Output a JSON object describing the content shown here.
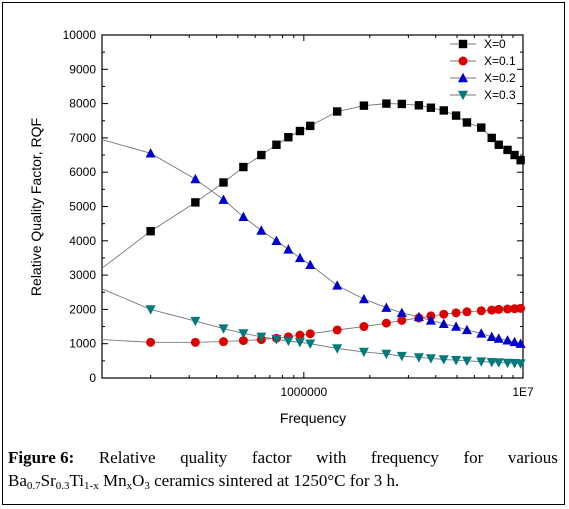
{
  "chart_data": {
    "type": "scatter",
    "title": "",
    "xlabel": "Frequency",
    "ylabel": "Relative Quality Factor, RQF",
    "xscale": "log",
    "xlim": [
      120000,
      10000000
    ],
    "ylim": [
      0,
      10000
    ],
    "y_ticks": [
      0,
      1000,
      2000,
      3000,
      4000,
      5000,
      6000,
      7000,
      8000,
      9000,
      10000
    ],
    "x_tick_values": [
      1000000,
      10000000
    ],
    "x_tick_labels": [
      "1000000",
      "1E7"
    ],
    "legend_position": "top-right",
    "grid": false,
    "series": [
      {
        "name": "X=0",
        "color": "#000000",
        "marker": "square",
        "x": [
          200000,
          320000,
          430000,
          530000,
          640000,
          750000,
          850000,
          960000,
          1070000,
          1420000,
          1880000,
          2380000,
          2800000,
          3350000,
          3800000,
          4350000,
          4950000,
          5550000,
          6450000,
          7200000,
          7750000,
          8500000,
          9150000,
          9750000
        ],
        "y": [
          4280,
          5120,
          5700,
          6150,
          6500,
          6800,
          7020,
          7200,
          7350,
          7770,
          7940,
          8000,
          7990,
          7950,
          7880,
          7800,
          7650,
          7450,
          7300,
          7000,
          6800,
          6650,
          6500,
          6350
        ]
      },
      {
        "name": "X=0.1",
        "color": "#dd0000",
        "marker": "circle",
        "x": [
          200000,
          320000,
          430000,
          530000,
          640000,
          750000,
          850000,
          960000,
          1070000,
          1420000,
          1880000,
          2380000,
          2800000,
          3350000,
          3800000,
          4350000,
          4950000,
          5550000,
          6450000,
          7200000,
          7750000,
          8500000,
          9150000,
          9750000
        ],
        "y": [
          1040,
          1040,
          1060,
          1090,
          1120,
          1160,
          1200,
          1250,
          1290,
          1400,
          1500,
          1600,
          1680,
          1750,
          1810,
          1860,
          1900,
          1930,
          1960,
          1980,
          2000,
          2010,
          2020,
          2030
        ]
      },
      {
        "name": "X=0.2",
        "color": "#0000cc",
        "marker": "triangle-up",
        "x": [
          200000,
          320000,
          430000,
          530000,
          640000,
          750000,
          850000,
          960000,
          1070000,
          1420000,
          1880000,
          2380000,
          2800000,
          3350000,
          3800000,
          4350000,
          4950000,
          5550000,
          6450000,
          7200000,
          7750000,
          8500000,
          9150000,
          9750000
        ],
        "y": [
          6550,
          5800,
          5200,
          4700,
          4300,
          4000,
          3750,
          3500,
          3300,
          2700,
          2300,
          2050,
          1900,
          1780,
          1680,
          1580,
          1500,
          1400,
          1300,
          1200,
          1150,
          1100,
          1050,
          1000
        ]
      },
      {
        "name": "X=0.3",
        "color": "#007a7a",
        "marker": "triangle-down",
        "x": [
          200000,
          320000,
          430000,
          530000,
          640000,
          750000,
          850000,
          960000,
          1070000,
          1420000,
          1880000,
          2380000,
          2800000,
          3350000,
          3800000,
          4350000,
          4950000,
          5550000,
          6450000,
          7200000,
          7750000,
          8500000,
          9150000,
          9750000
        ],
        "y": [
          2000,
          1660,
          1440,
          1300,
          1200,
          1130,
          1080,
          1040,
          1000,
          860,
          760,
          700,
          640,
          600,
          570,
          540,
          520,
          500,
          480,
          460,
          450,
          440,
          430,
          420
        ]
      }
    ],
    "fit_lines": [
      {
        "series": "X=0",
        "x": [
          120000,
          200000,
          320000,
          430000,
          530000,
          640000,
          750000,
          850000,
          960000,
          1070000,
          1420000,
          1880000,
          2380000,
          2800000,
          3350000,
          3800000,
          4350000,
          4950000,
          5550000,
          6450000,
          7200000,
          7750000,
          8500000,
          9150000,
          9750000,
          10000000
        ],
        "y": [
          3200,
          4280,
          5120,
          5700,
          6150,
          6500,
          6800,
          7020,
          7200,
          7350,
          7770,
          7940,
          8000,
          7990,
          7950,
          7880,
          7800,
          7650,
          7450,
          7300,
          7000,
          6800,
          6650,
          6500,
          6350,
          6250
        ]
      },
      {
        "series": "X=0.1",
        "x": [
          120000,
          200000,
          320000,
          430000,
          530000,
          640000,
          750000,
          850000,
          960000,
          1070000,
          1420000,
          1880000,
          2380000,
          2800000,
          3350000,
          3800000,
          4350000,
          4950000,
          5550000,
          6450000,
          7200000,
          7750000,
          8500000,
          9150000,
          9750000,
          10000000
        ],
        "y": [
          1120,
          1040,
          1040,
          1060,
          1090,
          1120,
          1160,
          1200,
          1250,
          1290,
          1400,
          1500,
          1600,
          1680,
          1750,
          1810,
          1860,
          1900,
          1930,
          1960,
          1980,
          2000,
          2010,
          2020,
          2030,
          2030
        ]
      },
      {
        "series": "X=0.2",
        "x": [
          120000,
          200000,
          320000,
          430000,
          530000,
          640000,
          750000,
          850000,
          960000,
          1070000,
          1420000,
          1880000,
          2380000,
          2800000,
          3350000,
          3800000,
          4350000,
          4950000,
          5550000,
          6450000,
          7200000,
          7750000,
          8500000,
          9150000,
          9750000,
          10000000
        ],
        "y": [
          6950,
          6550,
          5800,
          5200,
          4700,
          4300,
          4000,
          3750,
          3500,
          3300,
          2700,
          2300,
          2050,
          1900,
          1780,
          1680,
          1580,
          1500,
          1400,
          1300,
          1200,
          1150,
          1100,
          1050,
          1000,
          980
        ]
      },
      {
        "series": "X=0.3",
        "x": [
          120000,
          200000,
          320000,
          430000,
          530000,
          640000,
          750000,
          850000,
          960000,
          1070000,
          1420000,
          1880000,
          2380000,
          2800000,
          3350000,
          3800000,
          4350000,
          4950000,
          5550000,
          6450000,
          7200000,
          7750000,
          8500000,
          9150000,
          9750000,
          10000000
        ],
        "y": [
          2600,
          2000,
          1660,
          1440,
          1300,
          1200,
          1130,
          1080,
          1040,
          1000,
          860,
          760,
          700,
          640,
          600,
          570,
          540,
          520,
          500,
          480,
          460,
          450,
          440,
          430,
          420,
          415
        ]
      }
    ]
  },
  "caption": {
    "label": "Figure 6:",
    "line1_words": [
      "Relative",
      "quality",
      "factor",
      "with",
      "frequency",
      "for",
      "various"
    ],
    "formula_parts": [
      {
        "t": "Ba"
      },
      {
        "t": "0.7",
        "sub": true
      },
      {
        "t": "Sr"
      },
      {
        "t": "0.3",
        "sub": true
      },
      {
        "t": "Ti"
      },
      {
        "t": "1-x",
        "sub": true
      },
      {
        "t": " Mn"
      },
      {
        "t": "x",
        "sub": true
      },
      {
        "t": "O"
      },
      {
        "t": "3",
        "sub": true
      }
    ],
    "line2_rest": " ceramics sintered at 1250°C for 3 h."
  }
}
